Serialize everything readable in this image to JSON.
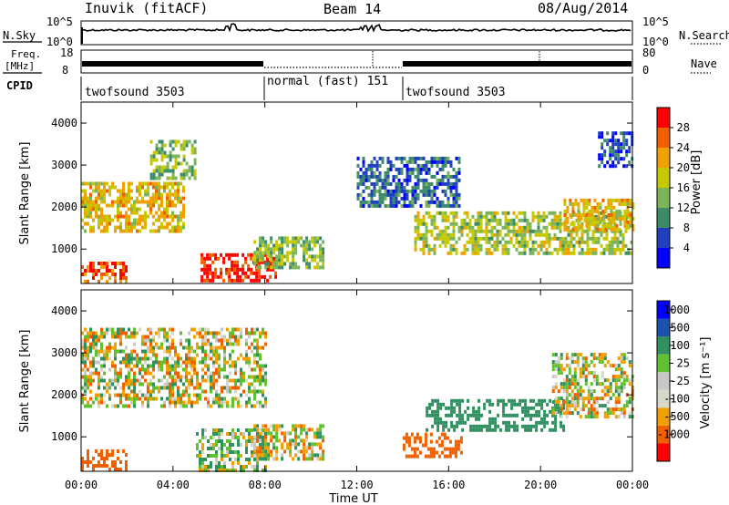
{
  "header": {
    "station": "Inuvik (fitACF)",
    "beam": "Beam 14",
    "date": "08/Aug/2014"
  },
  "nsky_panel": {
    "left_label": "N.Sky",
    "left_ticks": [
      "10^5",
      "10^0"
    ],
    "right_ticks": [
      "10^5",
      "10^0"
    ],
    "right_label": "N.Search"
  },
  "freq_panel": {
    "left_label_1": "Freq.",
    "left_label_2": "[MHz]",
    "left_ticks": [
      "18",
      "8"
    ],
    "right_ticks": [
      "80",
      "0"
    ],
    "right_label": "Nave"
  },
  "cpid": {
    "label": "CPID",
    "segments": [
      {
        "name": "twofsound 3503",
        "start_h": 0,
        "end_h": 7.9
      },
      {
        "name": "normal (fast) 151",
        "start_h": 7.9,
        "end_h": 14.1
      },
      {
        "name": "twofsound 3503",
        "start_h": 14.1,
        "end_h": 24
      }
    ]
  },
  "power_panel": {
    "ylabel": "Slant Range [km]",
    "yticks": [
      "4000",
      "3000",
      "2000",
      "1000"
    ],
    "colorbar_label": "Power [dB]",
    "colorbar_ticks": [
      "28",
      "24",
      "20",
      "16",
      "12",
      "8",
      "4"
    ],
    "colors": [
      "#0000ff",
      "#2040c0",
      "#3c8c6a",
      "#7ab55a",
      "#c8c800",
      "#f0a000",
      "#f06000",
      "#ff0000"
    ]
  },
  "velocity_panel": {
    "ylabel": "Slant Range [km]",
    "yticks": [
      "4000",
      "3000",
      "2000",
      "1000"
    ],
    "colorbar_label": "Velocity [m s⁻¹]",
    "colorbar_ticks": [
      "1000",
      "500",
      "100",
      "25",
      "-25",
      "-100",
      "-500",
      "-1000"
    ],
    "colors": [
      "#ff0000",
      "#f06000",
      "#f0a000",
      "#d8d8c8",
      "#c8c8c8",
      "#60c030",
      "#309060",
      "#1e50b0",
      "#0000ff"
    ]
  },
  "x_axis": {
    "ticks": [
      "00:00",
      "04:00",
      "08:00",
      "12:00",
      "16:00",
      "20:00",
      "00:00"
    ],
    "label": "Time UT"
  },
  "chart_data": {
    "type": "heatmap",
    "x": [
      "00:00",
      "04:00",
      "08:00",
      "12:00",
      "16:00",
      "20:00",
      "00:00"
    ],
    "xlabel": "Time UT",
    "ylabel": "Slant Range [km]",
    "xlim_hours": [
      0,
      24
    ],
    "ylim_km": [
      180,
      4500
    ],
    "power_regions": [
      {
        "t0": 0.0,
        "t1": 4.5,
        "r0": 1400,
        "r1": 2600,
        "power_db": 20
      },
      {
        "t0": 3.0,
        "t1": 5.0,
        "r0": 2700,
        "r1": 3600,
        "power_db": 14
      },
      {
        "t0": 5.2,
        "t1": 8.5,
        "r0": 250,
        "r1": 900,
        "power_db": 30
      },
      {
        "t0": 7.5,
        "t1": 10.5,
        "r0": 600,
        "r1": 1300,
        "power_db": 14
      },
      {
        "t0": 0.0,
        "t1": 2.0,
        "r0": 250,
        "r1": 700,
        "power_db": 26
      },
      {
        "t0": 14.5,
        "t1": 24.0,
        "r0": 900,
        "r1": 1900,
        "power_db": 16
      },
      {
        "t0": 12.0,
        "t1": 16.5,
        "r0": 2000,
        "r1": 3200,
        "power_db": 8
      },
      {
        "t0": 21.0,
        "t1": 24.0,
        "r0": 1500,
        "r1": 2200,
        "power_db": 20
      },
      {
        "t0": 22.5,
        "t1": 24.0,
        "r0": 3000,
        "r1": 3800,
        "power_db": 6
      }
    ],
    "velocity_regions": [
      {
        "t0": 0.0,
        "t1": 8.0,
        "r0": 1700,
        "r1": 3600,
        "vel": 0
      },
      {
        "t0": 0.0,
        "t1": 2.0,
        "r0": 250,
        "r1": 700,
        "vel": -300
      },
      {
        "t0": 5.0,
        "t1": 8.0,
        "r0": 200,
        "r1": 1200,
        "vel": 50
      },
      {
        "t0": 7.5,
        "t1": 10.5,
        "r0": 500,
        "r1": 1300,
        "vel": 0
      },
      {
        "t0": 14.0,
        "t1": 16.5,
        "r0": 500,
        "r1": 1100,
        "vel": -300
      },
      {
        "t0": 15.0,
        "t1": 21.0,
        "r0": 1200,
        "r1": 1900,
        "vel": 300
      },
      {
        "t0": 20.5,
        "t1": 24.0,
        "r0": 1500,
        "r1": 3000,
        "vel": 0
      }
    ]
  }
}
